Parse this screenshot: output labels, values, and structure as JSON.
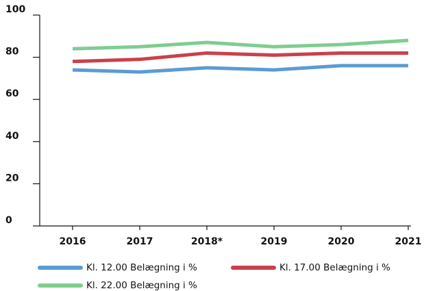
{
  "chart_data": {
    "type": "line",
    "categories": [
      "2016",
      "2017",
      "2018*",
      "2019",
      "2020",
      "2021"
    ],
    "series": [
      {
        "name": "Kl. 12.00 Belægning i %",
        "color": "#5b9bd5",
        "values": [
          74,
          73,
          75,
          74,
          76,
          76
        ]
      },
      {
        "name": "Kl. 17.00 Belægning i %",
        "color": "#c9414b",
        "values": [
          78,
          79,
          82,
          81,
          82,
          82
        ]
      },
      {
        "name": "Kl. 22.00 Belægning i %",
        "color": "#7fcd91",
        "values": [
          84,
          85,
          87,
          85,
          86,
          88
        ]
      }
    ],
    "ylim": [
      0,
      100
    ],
    "yticks": [
      0,
      20,
      40,
      60,
      80,
      100
    ],
    "grid": false
  }
}
